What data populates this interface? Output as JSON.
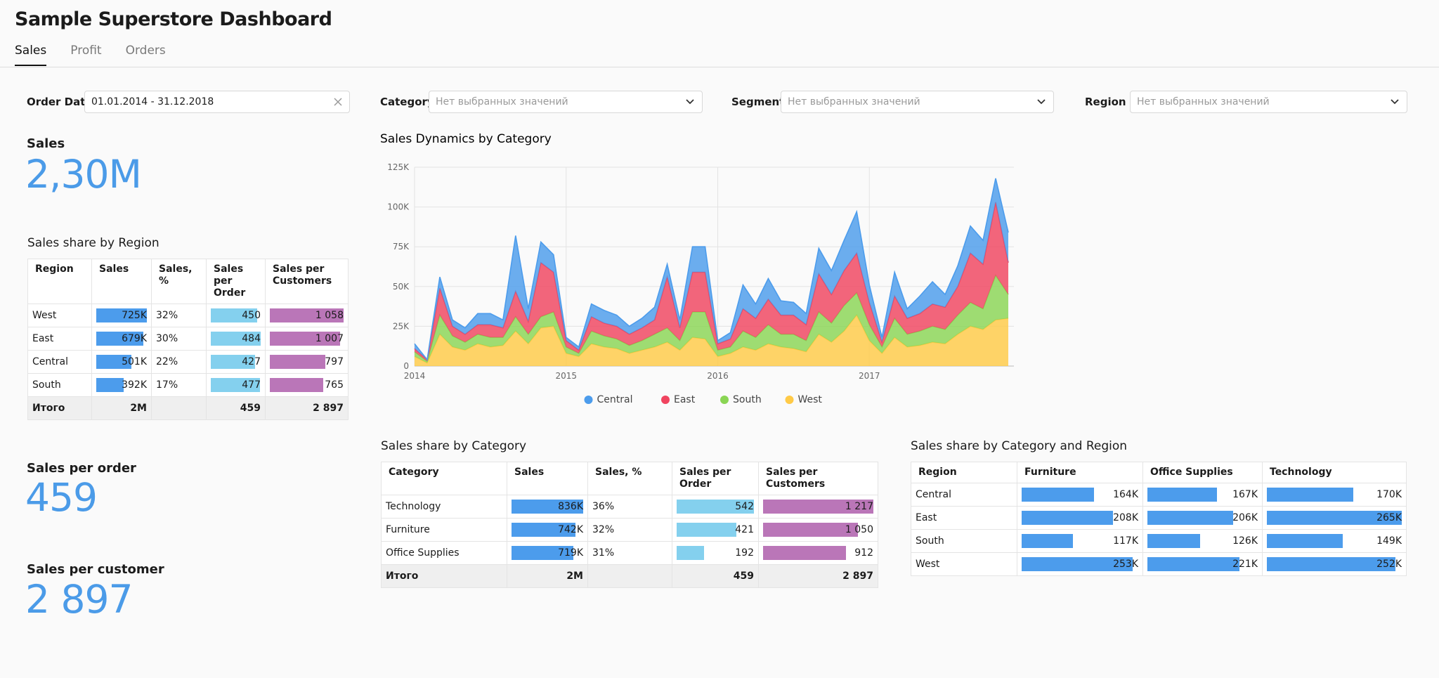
{
  "header": {
    "title": "Sample Superstore Dashboard"
  },
  "tabs": [
    "Sales",
    "Profit",
    "Orders"
  ],
  "filters": [
    {
      "label": "Order Date",
      "value": "01.01.2014 - 31.12.2018"
    },
    {
      "label": "Category",
      "placeholder": "Нет выбранных значений"
    },
    {
      "label": "Segment",
      "placeholder": "Нет выбранных значений"
    },
    {
      "label": "Region",
      "placeholder": "Нет выбранных значений"
    }
  ],
  "kpis": [
    {
      "label": "Sales",
      "value": "2,30M"
    },
    {
      "label": "Sales per order",
      "value": "459"
    },
    {
      "label": "Sales per customer",
      "value": "2 897"
    }
  ],
  "region_table": {
    "title": "Sales share by Region",
    "columns": [
      {
        "name": "Region"
      },
      {
        "name": "Sales",
        "bar_color": "#4c9cec"
      },
      {
        "name": "Sales, %"
      },
      {
        "name": "Sales per Order",
        "bar_color": "#84d0ee"
      },
      {
        "name": "Sales per Customers",
        "bar_color": "#ba76b8"
      }
    ],
    "rows": [
      [
        "West",
        {
          "value": 725000,
          "label": "725K"
        },
        "32%",
        450,
        {
          "value": 1058,
          "label": "1 058"
        }
      ],
      [
        "East",
        {
          "value": 679000,
          "label": "679K"
        },
        "30%",
        484,
        {
          "value": 1007,
          "label": "1 007"
        }
      ],
      [
        "Central",
        {
          "value": 501000,
          "label": "501K"
        },
        "22%",
        427,
        797
      ],
      [
        "South",
        {
          "value": 392000,
          "label": "392K"
        },
        "17%",
        477,
        765
      ]
    ],
    "total": [
      "Итого",
      "2M",
      null,
      459,
      "2 897"
    ]
  },
  "category_table": {
    "title": "Sales share by Category",
    "columns": [
      {
        "name": "Category"
      },
      {
        "name": "Sales",
        "bar_color": "#4c9cec"
      },
      {
        "name": "Sales, %"
      },
      {
        "name": "Sales per Order",
        "bar_color": "#84d0ee"
      },
      {
        "name": "Sales per Customers",
        "bar_color": "#ba76b8"
      }
    ],
    "rows": [
      [
        "Technology",
        {
          "value": 836000,
          "label": "836K"
        },
        "36%",
        542,
        {
          "value": 1217,
          "label": "1 217"
        }
      ],
      [
        "Furniture",
        {
          "value": 742000,
          "label": "742K"
        },
        "32%",
        421,
        {
          "value": 1050,
          "label": "1 050"
        }
      ],
      [
        "Office Supplies",
        {
          "value": 719000,
          "label": "719K"
        },
        "31%",
        192,
        912
      ]
    ],
    "total": [
      "Итого",
      "2M",
      null,
      459,
      "2 897"
    ]
  },
  "category_region_table": {
    "title": "Sales share by Category and Region",
    "bar_scale": "shared",
    "columns": [
      {
        "name": "Region"
      },
      {
        "name": "Furniture",
        "bar_color": "#4c9cec"
      },
      {
        "name": "Office Supplies",
        "bar_color": "#4c9cec"
      },
      {
        "name": "Technology",
        "bar_color": "#4c9cec"
      }
    ],
    "rows": [
      [
        "Central",
        {
          "value": 164000,
          "label": "164K"
        },
        {
          "value": 167000,
          "label": "167K"
        },
        {
          "value": 170000,
          "label": "170K"
        }
      ],
      [
        "East",
        {
          "value": 208000,
          "label": "208K"
        },
        {
          "value": 206000,
          "label": "206K"
        },
        {
          "value": 265000,
          "label": "265K"
        }
      ],
      [
        "South",
        {
          "value": 117000,
          "label": "117K"
        },
        {
          "value": 126000,
          "label": "126K"
        },
        {
          "value": 149000,
          "label": "149K"
        }
      ],
      [
        "West",
        {
          "value": 253000,
          "label": "253K"
        },
        {
          "value": 221000,
          "label": "221K"
        },
        {
          "value": 252000,
          "label": "252K"
        }
      ]
    ]
  },
  "chart_data": {
    "type": "area",
    "stacked": true,
    "title": "Sales Dynamics by Category",
    "categories": [
      "2014",
      null,
      null,
      null,
      null,
      null,
      null,
      null,
      null,
      null,
      null,
      null,
      "2015",
      null,
      null,
      null,
      null,
      null,
      null,
      null,
      null,
      null,
      null,
      null,
      "2016",
      null,
      null,
      null,
      null,
      null,
      null,
      null,
      null,
      null,
      null,
      null,
      "2017",
      null,
      null,
      null,
      null,
      null,
      null,
      null,
      null,
      null,
      null,
      null
    ],
    "series": [
      {
        "name": "Central",
        "color": "#4c9cec",
        "values": [
          3000,
          0,
          7000,
          4000,
          4000,
          7000,
          7000,
          5000,
          35000,
          8000,
          13000,
          11000,
          2000,
          2000,
          8000,
          8000,
          7000,
          5000,
          6000,
          8000,
          8000,
          5000,
          16000,
          16000,
          2000,
          4000,
          15000,
          9000,
          13000,
          9000,
          8000,
          7000,
          16000,
          15000,
          19000,
          26000,
          11000,
          3000,
          15000,
          6000,
          11000,
          14000,
          8000,
          13000,
          17000,
          15000,
          15000,
          19000
        ]
      },
      {
        "name": "East",
        "color": "#f0445f",
        "values": [
          2000,
          1000,
          17000,
          6000,
          5000,
          6000,
          8000,
          6000,
          16000,
          8000,
          34000,
          25000,
          4000,
          2000,
          9000,
          8000,
          8000,
          7000,
          8000,
          9000,
          32000,
          8000,
          25000,
          25000,
          4000,
          5000,
          14000,
          12000,
          16000,
          12000,
          12000,
          10000,
          24000,
          18000,
          22000,
          25000,
          14000,
          3000,
          14000,
          10000,
          11000,
          14000,
          14000,
          18000,
          31000,
          28000,
          46000,
          20000
        ]
      },
      {
        "name": "South",
        "color": "#8ad554",
        "values": [
          3000,
          1000,
          12000,
          7000,
          5000,
          6000,
          6000,
          5000,
          9000,
          6000,
          7000,
          9000,
          4000,
          2000,
          8000,
          7000,
          6000,
          5000,
          6000,
          8000,
          9000,
          6000,
          16000,
          17000,
          4000,
          4000,
          10000,
          8000,
          12000,
          8000,
          9000,
          7000,
          14000,
          12000,
          16000,
          14000,
          10000,
          4000,
          12000,
          8000,
          9000,
          10000,
          9000,
          12000,
          15000,
          13000,
          28000,
          15000
        ]
      },
      {
        "name": "West",
        "color": "#ffca47",
        "values": [
          6000,
          2000,
          20000,
          12000,
          10000,
          14000,
          12000,
          13000,
          22000,
          14000,
          24000,
          25000,
          8000,
          6000,
          14000,
          12000,
          11000,
          8000,
          10000,
          12000,
          15000,
          10000,
          18000,
          17000,
          6000,
          8000,
          12000,
          10000,
          14000,
          12000,
          11000,
          9000,
          20000,
          15000,
          22000,
          32000,
          16000,
          8000,
          18000,
          12000,
          13000,
          15000,
          14000,
          20000,
          25000,
          23000,
          29000,
          30000
        ]
      }
    ],
    "ylim": [
      0,
      125000
    ],
    "yticks": [
      0,
      {
        "value": 25000,
        "label": "25K"
      },
      {
        "value": 50000,
        "label": "50K"
      },
      {
        "value": 75000,
        "label": "75K"
      },
      {
        "value": 100000,
        "label": "100K"
      },
      {
        "value": 125000,
        "label": "125K"
      }
    ],
    "grid": true,
    "legend": "bottom"
  }
}
